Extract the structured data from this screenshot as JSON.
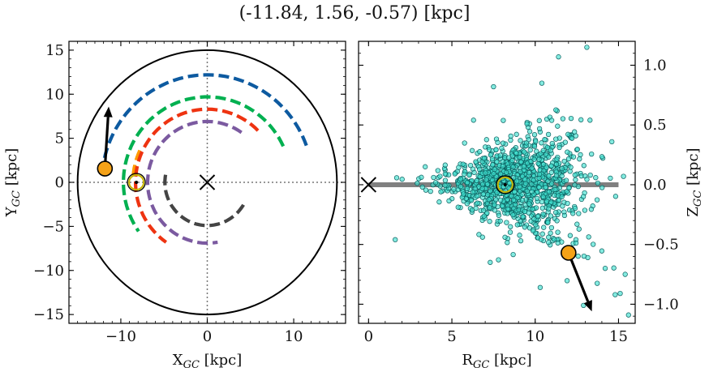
{
  "chart_data": [
    {
      "type": "line",
      "title": "(-11.84, 1.56, -0.57) [kpc]",
      "xlabel": "X_GC [kpc]",
      "ylabel": "Y_GC [kpc]",
      "xlim": [
        -16,
        16
      ],
      "ylim": [
        -16,
        16
      ],
      "xticks": [
        -10,
        0,
        10
      ],
      "yticks": [
        -15,
        -10,
        -5,
        0,
        5,
        10,
        15
      ],
      "circle_radius": 15,
      "sun": {
        "x": -8.2,
        "y": 0
      },
      "center_marker": {
        "x": 0,
        "y": 0
      },
      "object": {
        "x": -11.84,
        "y": 1.56
      },
      "velocity_arrow_tip": {
        "x": -11.4,
        "y": 8.6
      },
      "arms": [
        {
          "color": "#0d5aa0",
          "radius": 12.2,
          "theta_deg": [
            20,
            170
          ]
        },
        {
          "color": "#00b050",
          "radius": 9.7,
          "theta_deg": [
            25,
            215
          ]
        },
        {
          "color": "#ff9900",
          "radius": 8.6,
          "theta_deg": [
            155,
            175
          ]
        },
        {
          "color": "#ee3311",
          "radius": 8.3,
          "theta_deg": [
            45,
            235
          ]
        },
        {
          "color": "#7b5aa0",
          "radius": 6.9,
          "theta_deg": [
            55,
            280
          ]
        },
        {
          "color": "#444444",
          "radius": 4.9,
          "theta_deg": [
            170,
            330
          ]
        }
      ]
    },
    {
      "type": "scatter",
      "xlabel": "R_GC [kpc]",
      "ylabel": "Z_GC [kpc]",
      "xlim": [
        -0.6,
        16
      ],
      "ylim": [
        -1.16,
        1.2
      ],
      "xticks": [
        0,
        5,
        10,
        15
      ],
      "yticks": [
        -1.0,
        -0.5,
        0.0,
        0.5,
        1.0
      ],
      "ytick_labels": [
        "−1.0",
        "−0.5",
        "0.0",
        "0.5",
        "1.0"
      ],
      "disk_line": {
        "x": [
          0,
          15
        ],
        "y": 0
      },
      "sun": {
        "x": 8.2,
        "y": 0
      },
      "center_marker": {
        "x": 0,
        "y": 0
      },
      "object": {
        "x": 12.0,
        "y": -0.57
      },
      "velocity_arrow_tip": {
        "x": 13.4,
        "y": -1.06
      },
      "stars": {
        "center_r": 9.0,
        "n": 1100,
        "color": "#40e0d0"
      },
      "outliers": [
        [
          1.6,
          -0.46
        ],
        [
          3.4,
          0.15
        ],
        [
          4.6,
          0.09
        ],
        [
          11.4,
          1.07
        ],
        [
          13.1,
          1.15
        ],
        [
          10.4,
          0.85
        ],
        [
          7.5,
          0.82
        ],
        [
          6.3,
          0.54
        ],
        [
          15.6,
          -1.09
        ],
        [
          14.8,
          -0.92
        ],
        [
          15.1,
          -0.91
        ],
        [
          15.4,
          -0.75
        ],
        [
          14.2,
          -0.7
        ],
        [
          12.9,
          -1.01
        ],
        [
          7.3,
          -0.65
        ],
        [
          10.3,
          -0.86
        ],
        [
          14.6,
          0.36
        ],
        [
          15.3,
          0.07
        ]
      ]
    }
  ]
}
